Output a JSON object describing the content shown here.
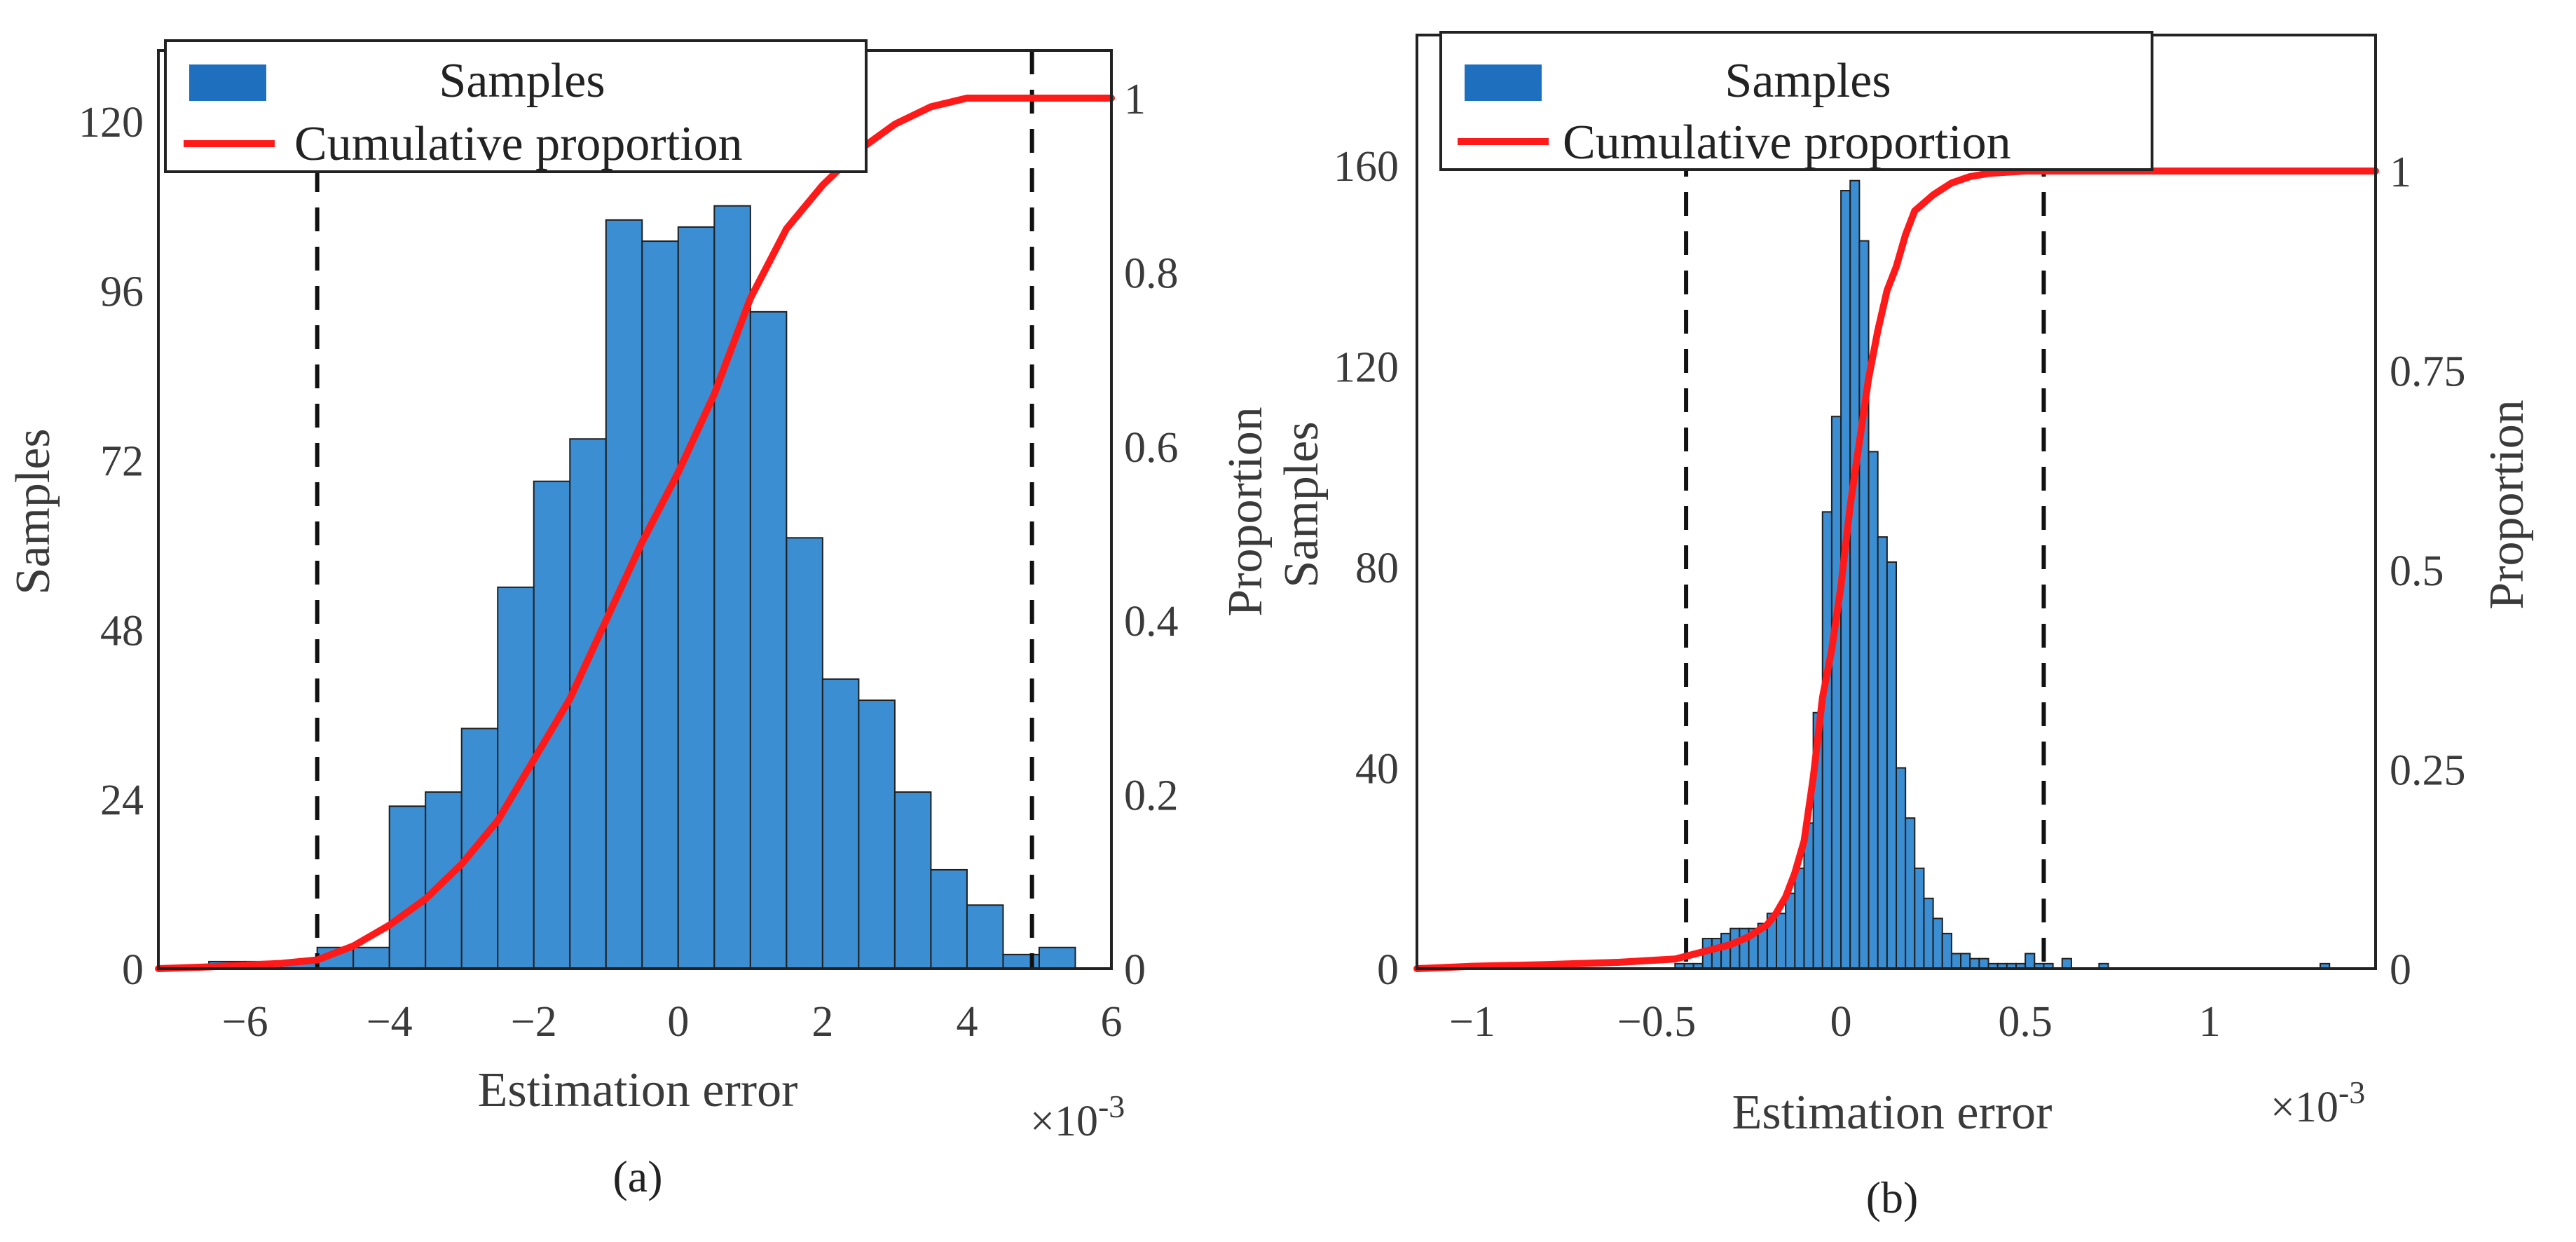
{
  "colors": {
    "bar_fill": "#3c8ed2",
    "curve": "#ff1a1a",
    "legend_patch": "#1f6fbf"
  },
  "chart_data": [
    {
      "id": "a",
      "type": "bar",
      "caption": "(a)",
      "xlabel": "Estimation error",
      "ylabel": "Samples",
      "y2label": "Proportion",
      "x_multiplier": "×10",
      "x_multiplier_exp": "-3",
      "xlim": [
        -7.2,
        6.0
      ],
      "ylim": [
        0,
        130
      ],
      "y2lim": [
        0,
        1.06
      ],
      "xticks": [
        -6,
        -4,
        -2,
        0,
        2,
        4,
        6
      ],
      "xtick_labels": [
        "−6",
        "−4",
        "−2",
        "0",
        "2",
        "4",
        "6"
      ],
      "yticks": [
        0,
        24,
        48,
        72,
        96,
        120
      ],
      "ytick_labels": [
        "0",
        "24",
        "48",
        "72",
        "96",
        "120"
      ],
      "y2ticks": [
        0,
        0.2,
        0.4,
        0.6,
        0.8,
        1
      ],
      "y2tick_labels": [
        "0",
        "0.2",
        "0.4",
        "0.6",
        "0.8",
        "1"
      ],
      "legend": {
        "position": "top-left",
        "entries": [
          "Samples",
          "Cumulative proportion"
        ]
      },
      "bin_edges": [
        -7.0,
        -6.5,
        -6.0,
        -5.5,
        -5.0,
        -4.5,
        -4.0,
        -3.5,
        -3.0,
        -2.5,
        -2.0,
        -1.5,
        -1.0,
        -0.5,
        0.0,
        0.5,
        1.0,
        1.5,
        2.0,
        2.5,
        3.0,
        3.5,
        4.0,
        4.5,
        5.0,
        5.5
      ],
      "counts": [
        0,
        1,
        1,
        1,
        3,
        3,
        23,
        25,
        34,
        54,
        69,
        75,
        106,
        103,
        105,
        108,
        93,
        61,
        41,
        38,
        25,
        14,
        9,
        2,
        3
      ],
      "cumulative_proportion": {
        "x": [
          -7.2,
          -6.5,
          -6.0,
          -5.5,
          -5.0,
          -4.5,
          -4.0,
          -3.5,
          -3.0,
          -2.5,
          -2.0,
          -1.5,
          -1.0,
          -0.5,
          0.0,
          0.5,
          1.0,
          1.5,
          2.0,
          2.5,
          3.0,
          3.5,
          4.0,
          4.5,
          5.0,
          5.5,
          6.0
        ],
        "y": [
          0.0,
          0.002,
          0.004,
          0.006,
          0.01,
          0.026,
          0.05,
          0.08,
          0.12,
          0.17,
          0.24,
          0.31,
          0.4,
          0.49,
          0.57,
          0.66,
          0.77,
          0.85,
          0.9,
          0.94,
          0.97,
          0.99,
          1.0,
          1.0,
          1.0,
          1.0,
          1.0
        ]
      },
      "dashed_lines": [
        -5.0,
        4.9
      ]
    },
    {
      "id": "b",
      "type": "bar",
      "caption": "(b)",
      "xlabel": "Estimation error",
      "ylabel": "Samples",
      "y2label": "Proportion",
      "x_multiplier": "×10",
      "x_multiplier_exp": "-3",
      "xlim": [
        -1.15,
        1.45
      ],
      "ylim": [
        0,
        186
      ],
      "y2lim": [
        0,
        1.16
      ],
      "xticks": [
        -1,
        -0.5,
        0,
        0.5,
        1
      ],
      "xtick_labels": [
        "−1",
        "−0.5",
        "0",
        "0.5",
        "1"
      ],
      "yticks": [
        0,
        40,
        80,
        120,
        160
      ],
      "ytick_labels": [
        "0",
        "40",
        "80",
        "120",
        "160"
      ],
      "y2ticks": [
        0,
        0.25,
        0.5,
        0.75,
        1
      ],
      "y2tick_labels": [
        "0",
        "0.25",
        "0.5",
        "0.75",
        "1"
      ],
      "legend": {
        "position": "top-left",
        "entries": [
          "Samples",
          "Cumulative proportion"
        ]
      },
      "bin_edges": [
        -0.45,
        -0.425,
        -0.4,
        -0.375,
        -0.35,
        -0.325,
        -0.3,
        -0.275,
        -0.25,
        -0.225,
        -0.2,
        -0.175,
        -0.15,
        -0.125,
        -0.1,
        -0.075,
        -0.05,
        -0.025,
        0.0,
        0.025,
        0.05,
        0.075,
        0.1,
        0.125,
        0.15,
        0.175,
        0.2,
        0.225,
        0.25,
        0.275,
        0.3,
        0.325,
        0.35,
        0.375,
        0.4,
        0.425,
        0.45,
        0.475,
        0.5,
        0.525,
        0.55,
        0.575
      ],
      "counts": [
        1,
        1,
        1,
        6,
        6,
        7,
        8,
        8,
        8,
        9,
        11,
        11,
        15,
        20,
        29,
        51,
        91,
        110,
        155,
        157,
        145,
        103,
        86,
        81,
        40,
        30,
        20,
        14,
        10,
        7,
        3,
        3,
        2,
        2,
        1,
        1,
        1,
        1,
        3,
        1,
        1
      ],
      "outlier_bins": [
        [
          0.6,
          0.625,
          2
        ],
        [
          0.7,
          0.725,
          1
        ],
        [
          1.3,
          1.325,
          1
        ]
      ],
      "cumulative_proportion": {
        "x": [
          -1.15,
          -1.0,
          -0.8,
          -0.6,
          -0.45,
          -0.4,
          -0.35,
          -0.3,
          -0.25,
          -0.2,
          -0.175,
          -0.15,
          -0.125,
          -0.1,
          -0.075,
          -0.05,
          -0.025,
          0.0,
          0.025,
          0.05,
          0.075,
          0.1,
          0.125,
          0.15,
          0.175,
          0.2,
          0.25,
          0.3,
          0.35,
          0.4,
          0.5,
          0.6,
          1.0,
          1.45
        ],
        "y": [
          0.0,
          0.003,
          0.005,
          0.008,
          0.012,
          0.018,
          0.024,
          0.03,
          0.04,
          0.055,
          0.07,
          0.09,
          0.12,
          0.16,
          0.24,
          0.34,
          0.4,
          0.48,
          0.58,
          0.66,
          0.74,
          0.8,
          0.85,
          0.88,
          0.92,
          0.95,
          0.97,
          0.985,
          0.993,
          0.997,
          1.0,
          1.0,
          1.0,
          1.0
        ]
      },
      "dashed_lines": [
        -0.42,
        0.55
      ]
    }
  ]
}
